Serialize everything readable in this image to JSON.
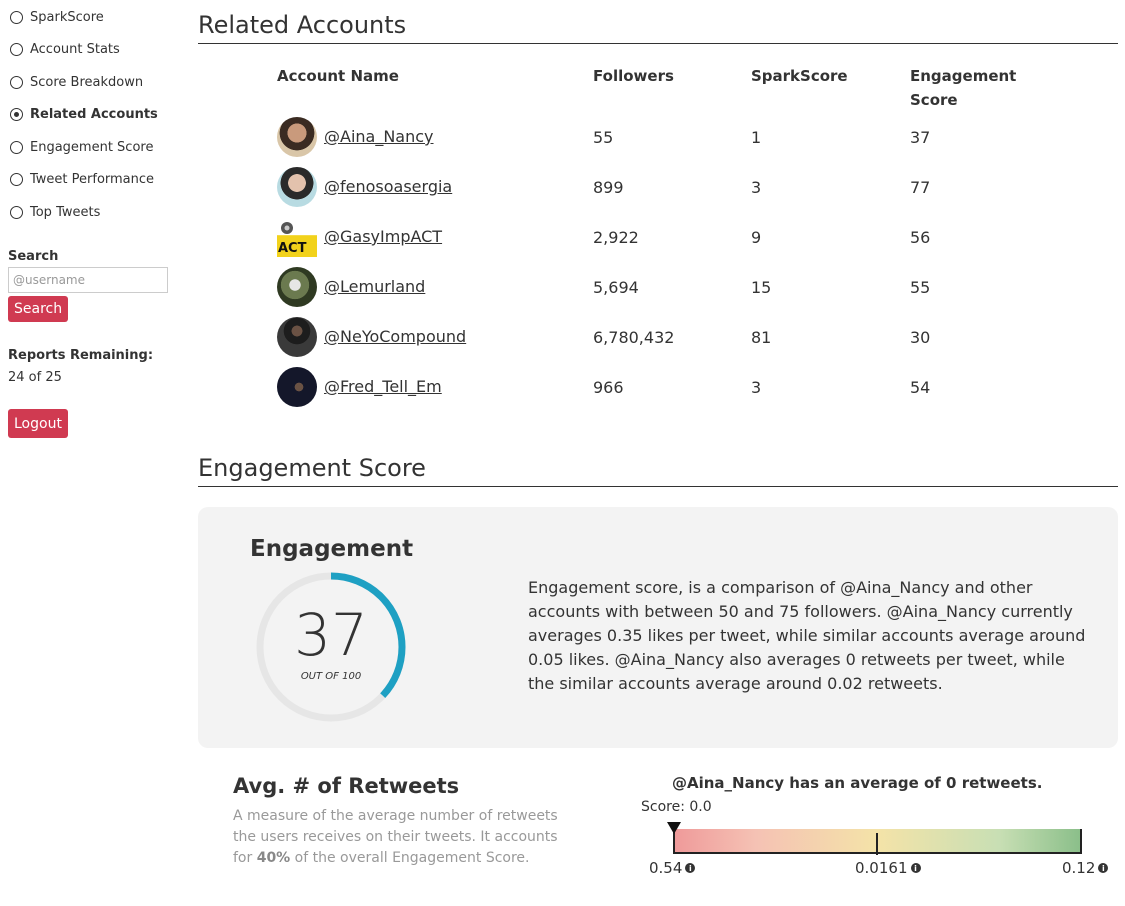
{
  "sidebar": {
    "items": [
      {
        "label": "SparkScore",
        "active": false
      },
      {
        "label": "Account Stats",
        "active": false
      },
      {
        "label": "Score Breakdown",
        "active": false
      },
      {
        "label": "Related Accounts",
        "active": true
      },
      {
        "label": "Engagement Score",
        "active": false
      },
      {
        "label": "Tweet Performance",
        "active": false
      },
      {
        "label": "Top Tweets",
        "active": false
      }
    ],
    "search_label": "Search",
    "search_placeholder": "@username",
    "search_button": "Search",
    "reports_label": "Reports Remaining:",
    "reports_value": "24 of 25",
    "logout_button": "Logout"
  },
  "related": {
    "title": "Related Accounts",
    "headers": {
      "name": "Account Name",
      "followers": "Followers",
      "spark": "SparkScore",
      "engagement": "Engagement Score"
    },
    "rows": [
      {
        "handle": "@Aina_Nancy",
        "followers": "55",
        "spark": "1",
        "engagement": "37"
      },
      {
        "handle": "@fenosoasergia",
        "followers": "899",
        "spark": "3",
        "engagement": "77"
      },
      {
        "handle": "@GasyImpACT",
        "followers": "2,922",
        "spark": "9",
        "engagement": "56"
      },
      {
        "handle": "@Lemurland",
        "followers": "5,694",
        "spark": "15",
        "engagement": "55"
      },
      {
        "handle": "@NeYoCompound",
        "followers": "6,780,432",
        "spark": "81",
        "engagement": "30"
      },
      {
        "handle": "@Fred_Tell_Em",
        "followers": "966",
        "spark": "3",
        "engagement": "54"
      }
    ]
  },
  "engagement": {
    "section_title": "Engagement Score",
    "card_title": "Engagement",
    "score": "37",
    "score_fraction": 0.37,
    "score_sub": "OUT OF 100",
    "gauge_color": "#1ea0c3",
    "description": "Engagement score, is a comparison of @Aina_Nancy and other accounts with between 50 and 75 followers. @Aina_Nancy currently averages 0.35 likes per tweet, while similar accounts average around 0.05 likes. @Aina_Nancy also averages 0 retweets per tweet, while the similar accounts average around 0.02 retweets."
  },
  "retweets": {
    "title": "Avg. # of Retweets",
    "desc_pre": "A measure of the average number of retweets the users receives on their tweets. It accounts for ",
    "desc_bold": "40%",
    "desc_post": " of the overall Engagement Score.",
    "avg_text": "@Aina_Nancy has an average of 0 retweets.",
    "score_text": "Score: 0.0",
    "tick_left": "0.54",
    "tick_mid": "0.0161",
    "tick_right": "0.12"
  }
}
